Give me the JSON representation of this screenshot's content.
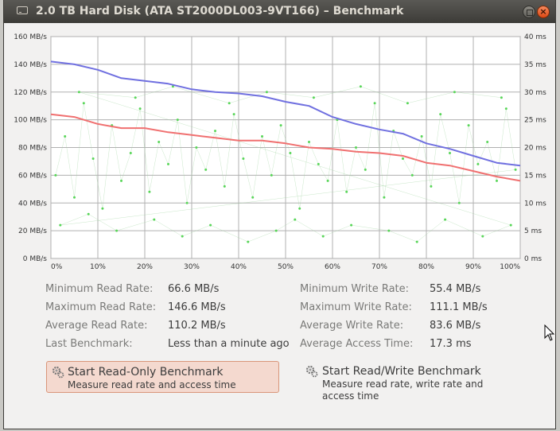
{
  "window": {
    "title": "2.0 TB Hard Disk (ATA ST2000DL003-9VT166) – Benchmark"
  },
  "chart_data": {
    "type": "line",
    "x_ticks": [
      "0%",
      "10%",
      "20%",
      "30%",
      "40%",
      "50%",
      "60%",
      "70%",
      "80%",
      "90%",
      "100%"
    ],
    "y_left_ticks": [
      "0 MB/s",
      "20 MB/s",
      "40 MB/s",
      "60 MB/s",
      "80 MB/s",
      "100 MB/s",
      "120 MB/s",
      "140 MB/s",
      "160 MB/s"
    ],
    "y_right_ticks": [
      "0 ms",
      "5 ms",
      "10 ms",
      "15 ms",
      "20 ms",
      "25 ms",
      "30 ms",
      "35 ms",
      "40 ms"
    ],
    "ylim_left": [
      0,
      160
    ],
    "ylim_right": [
      0,
      40
    ],
    "xlim": [
      0,
      100
    ],
    "grid": true,
    "series": [
      {
        "color": "#7070e0",
        "x": [
          0,
          5,
          10,
          15,
          20,
          25,
          30,
          35,
          40,
          45,
          50,
          55,
          60,
          65,
          70,
          75,
          80,
          85,
          90,
          95,
          100
        ],
        "values": [
          142,
          140,
          136,
          130,
          128,
          126,
          122,
          120,
          119,
          117,
          113,
          110,
          102,
          97,
          93,
          90,
          83,
          79,
          74,
          69,
          67
        ]
      },
      {
        "color": "#f07070",
        "x": [
          0,
          5,
          10,
          15,
          20,
          25,
          30,
          35,
          40,
          45,
          50,
          55,
          60,
          65,
          70,
          75,
          80,
          85,
          90,
          95,
          100
        ],
        "values": [
          104,
          102,
          97,
          94,
          94,
          91,
          89,
          87,
          85,
          85,
          83,
          80,
          79,
          77,
          76,
          74,
          69,
          67,
          63,
          59,
          56
        ]
      },
      {
        "color": "#59d659",
        "type": "scatter",
        "x": [
          1,
          3,
          5,
          7,
          9,
          11,
          13,
          15,
          17,
          19,
          21,
          23,
          25,
          27,
          29,
          31,
          33,
          35,
          37,
          39,
          41,
          43,
          45,
          47,
          49,
          51,
          53,
          55,
          57,
          59,
          61,
          63,
          65,
          67,
          69,
          71,
          73,
          75,
          77,
          79,
          81,
          83,
          85,
          87,
          89,
          91,
          93,
          95,
          97,
          99,
          2,
          8,
          14,
          22,
          28,
          34,
          42,
          48,
          52,
          58,
          64,
          72,
          78,
          84,
          92,
          98,
          6,
          18,
          26,
          38,
          46,
          56,
          66,
          76,
          86,
          96
        ],
        "values": [
          15,
          22,
          11,
          28,
          18,
          9,
          24,
          14,
          19,
          27,
          12,
          21,
          17,
          25,
          10,
          20,
          16,
          23,
          13,
          26,
          18,
          11,
          22,
          15,
          24,
          19,
          9,
          21,
          17,
          14,
          25,
          12,
          20,
          16,
          28,
          11,
          23,
          18,
          15,
          22,
          13,
          26,
          19,
          10,
          24,
          17,
          21,
          14,
          27,
          16,
          6,
          8,
          5,
          7,
          4,
          6,
          3,
          5,
          7,
          4,
          6,
          5,
          3,
          7,
          4,
          6,
          30,
          29,
          31,
          28,
          30,
          29,
          31,
          28,
          30,
          29
        ]
      }
    ]
  },
  "stats": {
    "min_read_label": "Minimum Read Rate:",
    "min_read_value": "66.6 MB/s",
    "max_read_label": "Maximum Read Rate:",
    "max_read_value": "146.6 MB/s",
    "avg_read_label": "Average Read Rate:",
    "avg_read_value": "110.2 MB/s",
    "last_bench_label": "Last Benchmark:",
    "last_bench_value": "Less than a minute ago",
    "min_write_label": "Minimum Write Rate:",
    "min_write_value": "55.4 MB/s",
    "max_write_label": "Maximum Write Rate:",
    "max_write_value": "111.1 MB/s",
    "avg_write_label": "Average Write Rate:",
    "avg_write_value": "83.6 MB/s",
    "avg_access_label": "Average Access Time:",
    "avg_access_value": "17.3 ms"
  },
  "buttons": {
    "read_only_title": "Start Read-Only Benchmark",
    "read_only_desc": "Measure read rate and access time",
    "read_write_title": "Start Read/Write Benchmark",
    "read_write_desc": "Measure read rate, write rate and access time"
  }
}
